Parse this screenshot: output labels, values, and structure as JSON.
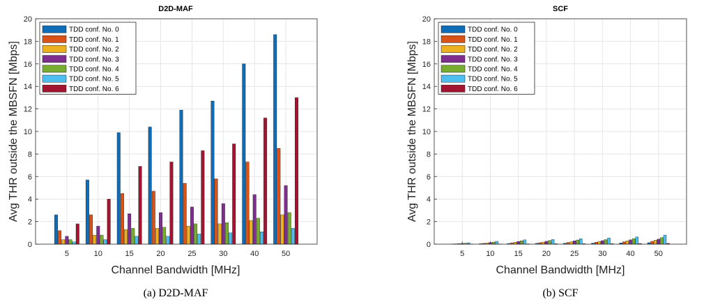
{
  "chart_data": [
    {
      "type": "bar",
      "title": "D2D-MAF",
      "caption": "(a)  D2D-MAF",
      "xlabel": "Channel Bandwidth [MHz]",
      "ylabel": "Avg THR outside the MBSFN [Mbps]",
      "ylim": [
        0,
        20
      ],
      "yticks": [
        "0",
        "2",
        "4",
        "6",
        "8",
        "10",
        "12",
        "14",
        "16",
        "18",
        "20"
      ],
      "grid": true,
      "legend_position": "top-left",
      "categories": [
        "5",
        "10",
        "15",
        "20",
        "25",
        "30",
        "40",
        "50"
      ],
      "series": [
        {
          "name": "TDD conf. No. 0",
          "color": "#0f6cb6",
          "values": [
            2.6,
            5.7,
            9.9,
            10.4,
            11.9,
            12.7,
            16.0,
            18.6
          ]
        },
        {
          "name": "TDD conf. No. 1",
          "color": "#d95319",
          "values": [
            1.2,
            2.6,
            4.5,
            4.7,
            5.4,
            5.8,
            7.3,
            8.5
          ]
        },
        {
          "name": "TDD conf. No. 2",
          "color": "#edb120",
          "values": [
            0.4,
            0.8,
            1.3,
            1.4,
            1.6,
            1.8,
            2.1,
            2.6
          ]
        },
        {
          "name": "TDD conf. No. 3",
          "color": "#7e2f8e",
          "values": [
            0.7,
            1.6,
            2.7,
            2.8,
            3.3,
            3.6,
            4.4,
            5.2
          ]
        },
        {
          "name": "TDD conf. No. 4",
          "color": "#77ac30",
          "values": [
            0.4,
            0.8,
            1.4,
            1.5,
            1.8,
            1.9,
            2.3,
            2.8
          ]
        },
        {
          "name": "TDD conf. No. 5",
          "color": "#4dbeee",
          "values": [
            0.2,
            0.4,
            0.7,
            0.7,
            0.9,
            1.0,
            1.1,
            1.4
          ]
        },
        {
          "name": "TDD conf. No. 6",
          "color": "#a2142f",
          "values": [
            1.8,
            4.0,
            6.9,
            7.3,
            8.3,
            8.9,
            11.2,
            13.0
          ]
        }
      ]
    },
    {
      "type": "bar",
      "title": "SCF",
      "caption": "(b)  SCF",
      "xlabel": "Channel Bandwidth [MHz]",
      "ylabel": "Avg THR outside the MBSFN [Mbps]",
      "ylim": [
        0,
        20
      ],
      "yticks": [
        "0",
        "2",
        "4",
        "6",
        "8",
        "10",
        "12",
        "14",
        "16",
        "18",
        "20"
      ],
      "grid": true,
      "legend_position": "top-left",
      "categories": [
        "5",
        "10",
        "15",
        "20",
        "25",
        "30",
        "40",
        "50"
      ],
      "series": [
        {
          "name": "TDD conf. No. 0",
          "color": "#0f6cb6",
          "values": [
            0.02,
            0.04,
            0.06,
            0.07,
            0.08,
            0.09,
            0.11,
            0.13
          ]
        },
        {
          "name": "TDD conf. No. 1",
          "color": "#d95319",
          "values": [
            0.03,
            0.07,
            0.12,
            0.13,
            0.15,
            0.17,
            0.21,
            0.25
          ]
        },
        {
          "name": "TDD conf. No. 2",
          "color": "#edb120",
          "values": [
            0.05,
            0.1,
            0.17,
            0.18,
            0.21,
            0.23,
            0.29,
            0.35
          ]
        },
        {
          "name": "TDD conf. No. 3",
          "color": "#7e2f8e",
          "values": [
            0.06,
            0.14,
            0.24,
            0.25,
            0.29,
            0.31,
            0.38,
            0.45
          ]
        },
        {
          "name": "TDD conf. No. 4",
          "color": "#77ac30",
          "values": [
            0.08,
            0.18,
            0.3,
            0.32,
            0.37,
            0.4,
            0.49,
            0.58
          ]
        },
        {
          "name": "TDD conf. No. 5",
          "color": "#4dbeee",
          "values": [
            0.12,
            0.25,
            0.38,
            0.41,
            0.48,
            0.55,
            0.64,
            0.8
          ]
        },
        {
          "name": "TDD conf. No. 6",
          "color": "#a2142f",
          "values": [
            0.01,
            0.02,
            0.03,
            0.04,
            0.04,
            0.05,
            0.06,
            0.07
          ]
        }
      ]
    }
  ]
}
